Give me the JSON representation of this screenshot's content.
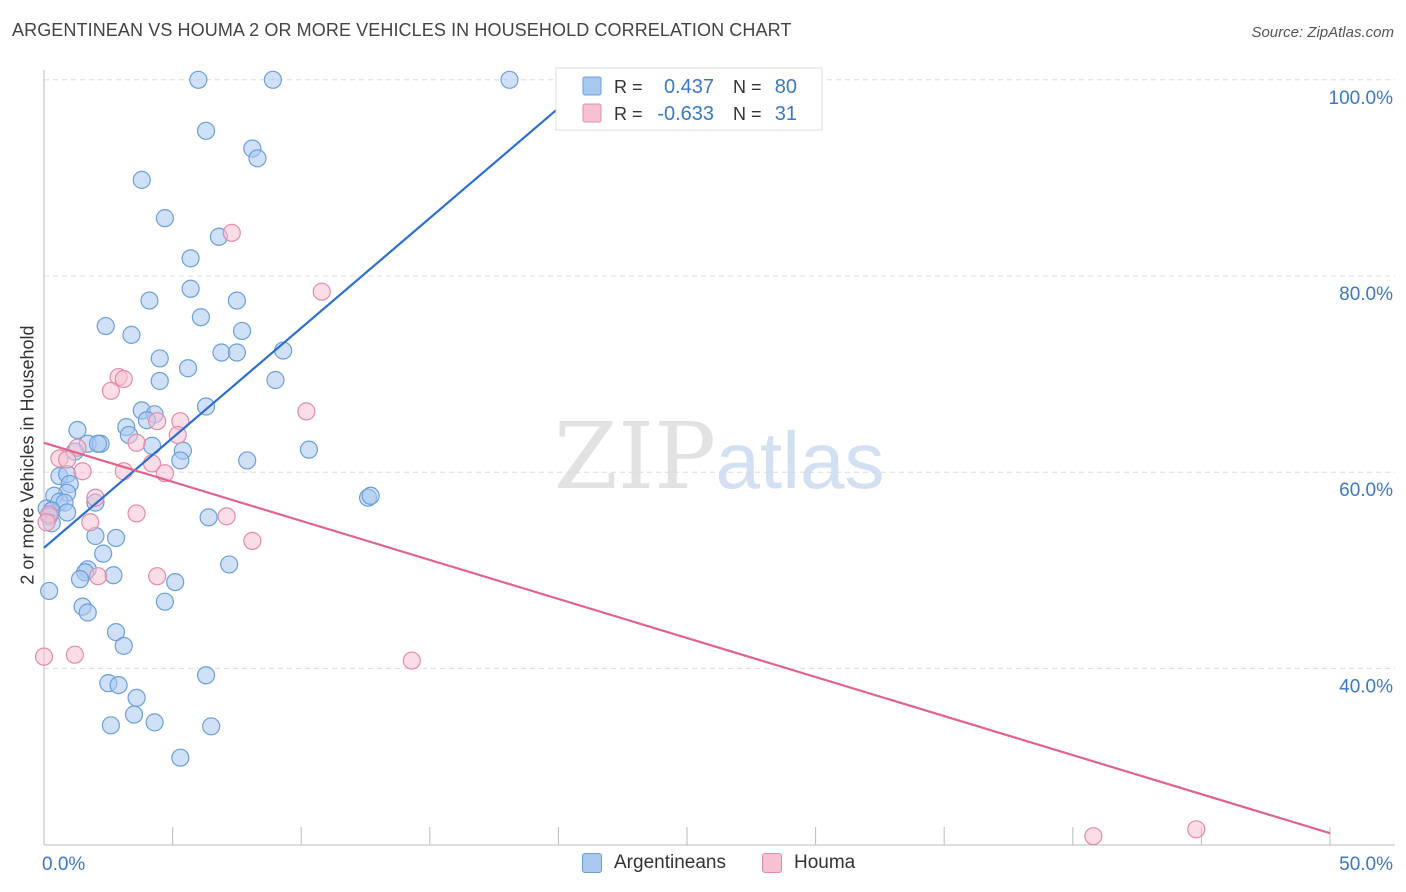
{
  "title": "ARGENTINEAN VS HOUMA 2 OR MORE VEHICLES IN HOUSEHOLD CORRELATION CHART",
  "source": "Source: ZipAtlas.com",
  "watermark": {
    "zip": "ZIP",
    "atlas": "atlas"
  },
  "colors": {
    "blue_fill": "#a9c8f0",
    "blue_stroke": "#6a9fdc",
    "blue_line": "#2c6fd1",
    "pink_fill": "#f6c1d2",
    "pink_stroke": "#e68aa8",
    "pink_line": "#e0638e",
    "axis_text": "#3a78c9",
    "grid": "#dcdcdc"
  },
  "chart_data": {
    "type": "scatter",
    "title": "ARGENTINEAN VS HOUMA 2 OR MORE VEHICLES IN HOUSEHOLD CORRELATION CHART",
    "xlabel": "",
    "ylabel": "2 or more Vehicles in Household",
    "xlim": [
      0,
      50
    ],
    "ylim": [
      22,
      101
    ],
    "x_tick_labels": [
      "0.0%",
      "50.0%"
    ],
    "y_ticks": [
      40,
      60,
      80,
      100
    ],
    "y_tick_labels": [
      "40.0%",
      "60.0%",
      "80.0%",
      "100.0%"
    ],
    "grid": true,
    "legend": {
      "rows": [
        {
          "r_label": "R =",
          "r_value": "0.437",
          "n_label": "N =",
          "n_value": "80"
        },
        {
          "r_label": "R =",
          "r_value": "-0.633",
          "n_label": "N =",
          "n_value": "31"
        }
      ]
    },
    "series": [
      {
        "name": "Argentineans",
        "color": "#a9c8f0",
        "trend": {
          "x": [
            0,
            20.4
          ],
          "y": [
            52.3,
            98.0
          ]
        },
        "points": [
          [
            6.0,
            100
          ],
          [
            8.9,
            100
          ],
          [
            18.1,
            100
          ],
          [
            6.3,
            94.8
          ],
          [
            8.1,
            93.0
          ],
          [
            8.3,
            92.0
          ],
          [
            3.8,
            89.8
          ],
          [
            4.7,
            85.9
          ],
          [
            6.8,
            84.0
          ],
          [
            5.7,
            81.8
          ],
          [
            5.7,
            78.7
          ],
          [
            4.1,
            77.5
          ],
          [
            7.5,
            77.5
          ],
          [
            6.1,
            75.8
          ],
          [
            2.4,
            74.9
          ],
          [
            3.4,
            74.0
          ],
          [
            7.7,
            74.4
          ],
          [
            9.3,
            72.4
          ],
          [
            6.9,
            72.2
          ],
          [
            7.5,
            72.2
          ],
          [
            4.5,
            71.6
          ],
          [
            5.6,
            70.6
          ],
          [
            4.5,
            69.3
          ],
          [
            9.0,
            69.4
          ],
          [
            6.3,
            66.7
          ],
          [
            3.8,
            66.3
          ],
          [
            4.3,
            65.9
          ],
          [
            4.0,
            65.3
          ],
          [
            3.2,
            64.6
          ],
          [
            1.3,
            64.3
          ],
          [
            3.3,
            63.8
          ],
          [
            1.7,
            62.9
          ],
          [
            2.2,
            62.9
          ],
          [
            2.1,
            62.9
          ],
          [
            4.2,
            62.7
          ],
          [
            5.4,
            62.2
          ],
          [
            1.2,
            62.1
          ],
          [
            5.3,
            61.2
          ],
          [
            7.9,
            61.2
          ],
          [
            10.3,
            62.3
          ],
          [
            0.6,
            59.6
          ],
          [
            0.9,
            59.8
          ],
          [
            1.0,
            58.8
          ],
          [
            0.9,
            57.9
          ],
          [
            0.4,
            57.6
          ],
          [
            0.6,
            57.0
          ],
          [
            0.8,
            56.9
          ],
          [
            2.0,
            56.9
          ],
          [
            0.1,
            56.3
          ],
          [
            0.3,
            56.1
          ],
          [
            0.2,
            55.5
          ],
          [
            0.9,
            55.9
          ],
          [
            0.3,
            54.8
          ],
          [
            6.4,
            55.4
          ],
          [
            12.6,
            57.4
          ],
          [
            12.7,
            57.6
          ],
          [
            2.0,
            53.5
          ],
          [
            2.8,
            53.3
          ],
          [
            2.3,
            51.7
          ],
          [
            1.7,
            50.1
          ],
          [
            1.6,
            49.8
          ],
          [
            2.7,
            49.5
          ],
          [
            7.2,
            50.6
          ],
          [
            1.4,
            49.1
          ],
          [
            5.1,
            48.8
          ],
          [
            0.2,
            47.9
          ],
          [
            1.5,
            46.3
          ],
          [
            1.7,
            45.7
          ],
          [
            4.7,
            46.8
          ],
          [
            2.8,
            43.7
          ],
          [
            3.1,
            42.3
          ],
          [
            6.3,
            39.3
          ],
          [
            2.5,
            38.5
          ],
          [
            2.9,
            38.3
          ],
          [
            3.6,
            37.0
          ],
          [
            3.5,
            35.3
          ],
          [
            2.6,
            34.2
          ],
          [
            4.3,
            34.5
          ],
          [
            6.5,
            34.1
          ],
          [
            5.3,
            30.9
          ]
        ]
      },
      {
        "name": "Houma",
        "color": "#f6c1d2",
        "trend": {
          "x": [
            0,
            50
          ],
          "y": [
            63.0,
            23.2
          ]
        },
        "points": [
          [
            7.3,
            84.4
          ],
          [
            10.8,
            78.4
          ],
          [
            2.9,
            69.7
          ],
          [
            3.1,
            69.5
          ],
          [
            2.6,
            68.3
          ],
          [
            10.2,
            66.2
          ],
          [
            4.4,
            65.2
          ],
          [
            5.3,
            65.2
          ],
          [
            3.6,
            63.0
          ],
          [
            5.2,
            63.8
          ],
          [
            1.3,
            62.5
          ],
          [
            0.6,
            61.4
          ],
          [
            0.9,
            61.3
          ],
          [
            4.2,
            60.9
          ],
          [
            1.5,
            60.1
          ],
          [
            3.1,
            60.1
          ],
          [
            4.7,
            59.9
          ],
          [
            2.0,
            57.4
          ],
          [
            3.6,
            55.8
          ],
          [
            0.2,
            55.7
          ],
          [
            7.1,
            55.5
          ],
          [
            1.8,
            54.9
          ],
          [
            8.1,
            53.0
          ],
          [
            2.1,
            49.4
          ],
          [
            4.4,
            49.4
          ],
          [
            0.0,
            41.2
          ],
          [
            1.2,
            41.4
          ],
          [
            14.3,
            40.8
          ],
          [
            40.8,
            22.9
          ],
          [
            44.8,
            23.6
          ],
          [
            0.1,
            54.9
          ]
        ]
      }
    ]
  }
}
